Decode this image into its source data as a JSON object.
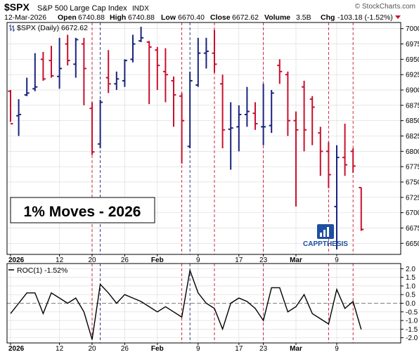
{
  "header": {
    "symbol": "$SPX",
    "name": "S&P 500 Large Cap Index",
    "exchange": "INDX",
    "source": "© StockCharts.com",
    "date": "12-Mar-2026",
    "open_label": "Open",
    "open": "6740.88",
    "high_label": "High",
    "high": "6740.88",
    "low_label": "Low",
    "low": "6670.40",
    "close_label": "Close",
    "close": "6672.62",
    "volume_label": "Volume",
    "volume": "3.5B",
    "chg_label": "Chg",
    "chg": "-103.18 (-1.52%)"
  },
  "colors": {
    "up": "#1a237e",
    "down": "#c8102e",
    "move_line_down": "#c8102e",
    "move_line_up": "#1a237e",
    "roc_line": "#000000",
    "grid": "#d8d8d8",
    "axis": "#000000"
  },
  "annotation": "1% Moves - 2026",
  "logo": {
    "text": "CAPPTHESIS"
  },
  "chart_data": [
    {
      "type": "ohlc",
      "legend": "$SPX (Daily) 6672.62",
      "y_range": [
        6632,
        7010
      ],
      "y_ticks": [
        6650,
        6675,
        6700,
        6725,
        6750,
        6775,
        6800,
        6825,
        6850,
        6875,
        6900,
        6925,
        6950,
        6975,
        7000
      ],
      "x_tick_labels": [
        {
          "label": "2026",
          "day": 0
        },
        {
          "label": "12",
          "day": 6
        },
        {
          "label": "20",
          "day": 10
        },
        {
          "label": "26",
          "day": 14
        },
        {
          "label": "Feb",
          "day": 18
        },
        {
          "label": "9",
          "day": 23
        },
        {
          "label": "17",
          "day": 28
        },
        {
          "label": "23",
          "day": 31
        },
        {
          "label": "Mar",
          "day": 35
        },
        {
          "label": "9",
          "day": 40
        }
      ],
      "one_percent_move_days": [
        {
          "day": 10,
          "dir": "down"
        },
        {
          "day": 11,
          "dir": "up"
        },
        {
          "day": 21,
          "dir": "down"
        },
        {
          "day": 22,
          "dir": "up"
        },
        {
          "day": 25,
          "dir": "down"
        },
        {
          "day": 31,
          "dir": "down"
        },
        {
          "day": 39,
          "dir": "down"
        },
        {
          "day": 42,
          "dir": "down"
        }
      ],
      "bars": [
        {
          "o": 6898,
          "h": 6900,
          "l": 6848,
          "c": 6845
        },
        {
          "o": 6858,
          "h": 6885,
          "l": 6825,
          "c": 6860
        },
        {
          "o": 6892,
          "h": 6920,
          "l": 6890,
          "c": 6895
        },
        {
          "o": 6902,
          "h": 6960,
          "l": 6898,
          "c": 6905
        },
        {
          "o": 6950,
          "h": 6962,
          "l": 6915,
          "c": 6918
        },
        {
          "o": 6948,
          "h": 6972,
          "l": 6920,
          "c": 6923
        },
        {
          "o": 6922,
          "h": 6985,
          "l": 6902,
          "c": 6935
        },
        {
          "o": 6975,
          "h": 6990,
          "l": 6940,
          "c": 6948
        },
        {
          "o": 6942,
          "h": 6985,
          "l": 6920,
          "c": 6982
        },
        {
          "o": 6975,
          "h": 6985,
          "l": 6875,
          "c": 6935
        },
        {
          "o": 6870,
          "h": 6880,
          "l": 6794,
          "c": 6799
        },
        {
          "o": 6812,
          "h": 6884,
          "l": 6805,
          "c": 6880
        },
        {
          "o": 6920,
          "h": 6965,
          "l": 6895,
          "c": 6910
        },
        {
          "o": 6910,
          "h": 6930,
          "l": 6900,
          "c": 6918
        },
        {
          "o": 6915,
          "h": 6950,
          "l": 6905,
          "c": 6948
        },
        {
          "o": 6950,
          "h": 6990,
          "l": 6945,
          "c": 6975
        },
        {
          "o": 6980,
          "h": 7003,
          "l": 6978,
          "c": 6985
        },
        {
          "o": 6978,
          "h": 6980,
          "l": 6877,
          "c": 6970
        },
        {
          "o": 6965,
          "h": 6970,
          "l": 6900,
          "c": 6940
        },
        {
          "o": 6930,
          "h": 6968,
          "l": 6880,
          "c": 6925
        },
        {
          "o": 6915,
          "h": 6922,
          "l": 6840,
          "c": 6892
        },
        {
          "o": 6890,
          "h": 6895,
          "l": 6780,
          "c": 6850
        },
        {
          "o": 6808,
          "h": 6930,
          "l": 6805,
          "c": 6915
        },
        {
          "o": 6908,
          "h": 6985,
          "l": 6905,
          "c": 6960
        },
        {
          "o": 6960,
          "h": 6985,
          "l": 6935,
          "c": 6963
        },
        {
          "o": 6960,
          "h": 6998,
          "l": 6928,
          "c": 6942
        },
        {
          "o": 6910,
          "h": 6925,
          "l": 6805,
          "c": 6835
        },
        {
          "o": 6836,
          "h": 6880,
          "l": 6770,
          "c": 6838
        },
        {
          "o": 6840,
          "h": 6875,
          "l": 6800,
          "c": 6860
        },
        {
          "o": 6860,
          "h": 6905,
          "l": 6840,
          "c": 6865
        },
        {
          "o": 6862,
          "h": 6880,
          "l": 6835,
          "c": 6845
        },
        {
          "o": 6840,
          "h": 6910,
          "l": 6810,
          "c": 6840
        },
        {
          "o": 6842,
          "h": 6900,
          "l": 6830,
          "c": 6895
        },
        {
          "o": 6940,
          "h": 6950,
          "l": 6910,
          "c": 6930
        },
        {
          "o": 6925,
          "h": 6930,
          "l": 6825,
          "c": 6850
        },
        {
          "o": 6850,
          "h": 6865,
          "l": 6710,
          "c": 6835
        },
        {
          "o": 6905,
          "h": 6915,
          "l": 6800,
          "c": 6835
        },
        {
          "o": 6885,
          "h": 6890,
          "l": 6810,
          "c": 6872
        },
        {
          "o": 6830,
          "h": 6840,
          "l": 6760,
          "c": 6800
        },
        {
          "o": 6800,
          "h": 6815,
          "l": 6740,
          "c": 6762
        },
        {
          "o": 6710,
          "h": 6810,
          "l": 6640,
          "c": 6790
        },
        {
          "o": 6790,
          "h": 6845,
          "l": 6760,
          "c": 6778
        },
        {
          "o": 6800,
          "h": 6805,
          "l": 6765,
          "c": 6776
        },
        {
          "o": 6740.88,
          "h": 6740.88,
          "l": 6670.4,
          "c": 6672.62
        }
      ]
    },
    {
      "type": "line",
      "legend": "ROC(1) -1.52%",
      "y_range": [
        -2.3,
        2.3
      ],
      "y_ticks": [
        -2.0,
        -1.5,
        -1.0,
        -0.5,
        0.0,
        0.5,
        1.0,
        1.5,
        2.0
      ],
      "y_tick_labels": [
        "-2.0",
        "-1.5",
        "-1.0",
        "-0.5",
        "0.0",
        "0.5",
        "1.0",
        "1.5",
        "2.0"
      ],
      "zero_line": true,
      "values": [
        -0.6,
        0.0,
        0.6,
        0.6,
        -0.6,
        0.6,
        0.3,
        0.0,
        0.3,
        -0.5,
        -2.1,
        1.1,
        0.6,
        0.0,
        0.5,
        0.3,
        0.1,
        -0.2,
        -0.5,
        -0.2,
        -0.5,
        -0.8,
        1.9,
        0.6,
        0.0,
        -0.3,
        -1.5,
        0.0,
        0.3,
        0.1,
        -0.3,
        -1.0,
        0.9,
        0.9,
        -0.5,
        -0.2,
        0.5,
        -0.6,
        -0.9,
        -1.2,
        0.8,
        -0.3,
        0.1,
        -1.52
      ]
    }
  ]
}
